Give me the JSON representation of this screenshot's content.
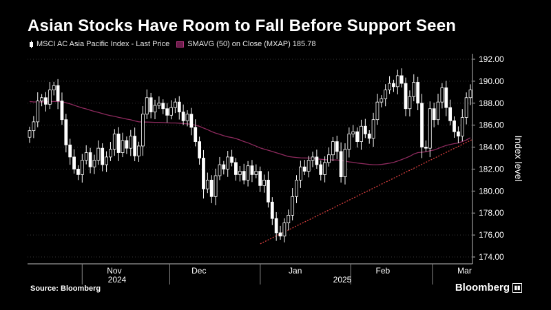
{
  "header": {
    "title": "Asian Stocks Have Room to Fall Before Support Seen"
  },
  "legend": {
    "series1": "MSCI AC Asia Pacific Index - Last Price",
    "series2": "SMAVG (50)  on Close (MXAP) 185.78"
  },
  "footer": {
    "source": "Source: Bloomberg",
    "brand": "Bloomberg"
  },
  "colors": {
    "background": "#000000",
    "candle": "#ffffff",
    "sma": "#8e2a5e",
    "support": "#cc3b3b",
    "grid": "#3a3a3a"
  },
  "chart_data": {
    "type": "candlestick",
    "title": "Asian Stocks Have Room to Fall Before Support Seen",
    "ylabel": "Index level",
    "ylim": [
      173.5,
      192.5
    ],
    "yticks": [
      "174.00",
      "176.00",
      "178.00",
      "180.00",
      "182.00",
      "184.00",
      "186.00",
      "188.00",
      "190.00",
      "192.00"
    ],
    "xticks": [
      "Nov",
      "Dec",
      "Jan",
      "Feb",
      "Mar"
    ],
    "year_labels": [
      "2024",
      "2025"
    ],
    "grid": true,
    "legend_position": "top-left",
    "date_range": [
      "2024-10-14",
      "2025-03-14"
    ],
    "closes": [
      185.5,
      186.3,
      188.2,
      188.5,
      187.9,
      189.2,
      189.6,
      188.2,
      186.5,
      184.2,
      183.1,
      182.0,
      181.5,
      182.8,
      183.5,
      182.2,
      182.8,
      183.9,
      182.4,
      183.1,
      183.8,
      185.2,
      183.5,
      184.6,
      183.9,
      185.0,
      183.2,
      184.1,
      187.0,
      188.5,
      187.2,
      187.8,
      188.0,
      187.5,
      186.9,
      187.6,
      188.1,
      187.2,
      186.4,
      187.0,
      185.8,
      184.5,
      183.0,
      180.2,
      181.0,
      179.5,
      181.4,
      182.4,
      182.0,
      183.1,
      182.6,
      181.5,
      181.8,
      181.0,
      182.3,
      181.5,
      181.8,
      180.5,
      181.0,
      179.0,
      177.5,
      176.2,
      175.9,
      177.1,
      177.8,
      179.5,
      181.0,
      182.2,
      181.8,
      182.8,
      183.1,
      182.4,
      181.5,
      182.6,
      183.3,
      184.5,
      183.6,
      181.3,
      183.8,
      185.2,
      185.4,
      184.5,
      185.9,
      185.2,
      184.8,
      186.5,
      188.1,
      188.4,
      189.2,
      189.8,
      189.5,
      190.5,
      189.8,
      187.5,
      188.6,
      189.9,
      188.0,
      184.0,
      183.9,
      187.5,
      186.5,
      188.1,
      189.4,
      187.6,
      186.4,
      185.4,
      185.0,
      186.7,
      188.5,
      189.2,
      189.9,
      189.5,
      188.5,
      188.2,
      188.6,
      188.8
    ],
    "sma_label": "SMAVG (50)",
    "sma_last": 185.78,
    "support_line": {
      "from": [
        "2025-01-01",
        175.2
      ],
      "to": [
        "2025-03-21",
        184.7
      ]
    }
  }
}
